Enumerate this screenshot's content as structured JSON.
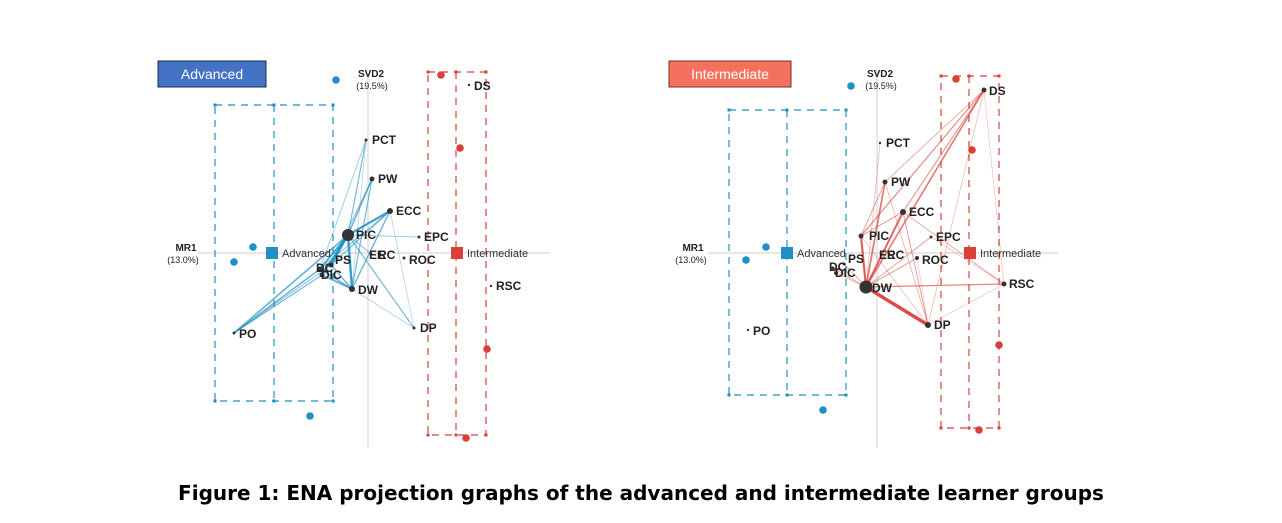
{
  "caption": "Figure 1: ENA projection graphs of the advanced and intermediate learner groups",
  "axes": {
    "x_label": "MR1",
    "x_pct": "(13.0%)",
    "y_label": "SVD2",
    "y_pct": "(19.5%)"
  },
  "colors": {
    "advanced": "#1f8fc4",
    "intermediate": "#d9403a",
    "advanced_box_fill": "#4472c4",
    "advanced_box_text": "#ffffff",
    "intermediate_box_fill": "#f4725d",
    "intermediate_box_text": "#ffffff",
    "node": "#333333",
    "axis": "#cfcfcf"
  },
  "chart_data": [
    {
      "type": "scatter",
      "title": "Advanced",
      "group_mean_label": "Advanced",
      "other_mean_label": "Intermediate",
      "origin": [
        368,
        253
      ],
      "nodes": [
        {
          "code": "PCT",
          "pos": [
            366,
            140
          ],
          "size": 1.5
        },
        {
          "code": "PW",
          "pos": [
            372,
            179
          ],
          "size": 2.5
        },
        {
          "code": "ECC",
          "pos": [
            390,
            211
          ],
          "size": 3
        },
        {
          "code": "PIC",
          "pos": [
            348,
            235
          ],
          "size": 6
        },
        {
          "code": "EPC",
          "pos": [
            419,
            237
          ],
          "size": 1.5
        },
        {
          "code": "EE",
          "pos": [
            371,
            254
          ],
          "size": 1.5
        },
        {
          "code": "RC",
          "pos": [
            380,
            254
          ],
          "size": 1.2
        },
        {
          "code": "ROC",
          "pos": [
            404,
            258
          ],
          "size": 1.5
        },
        {
          "code": "PS",
          "pos": [
            331,
            265
          ],
          "size": 2.5
        },
        {
          "code": "DC",
          "pos": [
            320,
            269
          ],
          "size": 2.5
        },
        {
          "code": "DIC",
          "pos": [
            322,
            275
          ],
          "size": 2.5
        },
        {
          "code": "DW",
          "pos": [
            352,
            289
          ],
          "size": 3
        },
        {
          "code": "RSC",
          "pos": [
            491,
            286
          ],
          "size": 1.2
        },
        {
          "code": "DP",
          "pos": [
            414,
            328
          ],
          "size": 1.5
        },
        {
          "code": "PO",
          "pos": [
            234,
            333
          ],
          "size": 1.5
        },
        {
          "code": "DS",
          "pos": [
            469,
            85
          ],
          "size": 1.2
        }
      ],
      "edges": [
        [
          "PIC",
          "PCT",
          1.2
        ],
        [
          "PIC",
          "PW",
          1.5
        ],
        [
          "PIC",
          "ECC",
          2.2
        ],
        [
          "PIC",
          "PS",
          2.2
        ],
        [
          "PIC",
          "DC",
          2
        ],
        [
          "PIC",
          "DIC",
          2.2
        ],
        [
          "PIC",
          "DW",
          2.4
        ],
        [
          "PIC",
          "PO",
          1.6
        ],
        [
          "PIC",
          "DP",
          1.2
        ],
        [
          "PIC",
          "EE",
          1
        ],
        [
          "PIC",
          "EPC",
          0.8
        ],
        [
          "ECC",
          "DW",
          1.4
        ],
        [
          "ECC",
          "PS",
          1.2
        ],
        [
          "ECC",
          "DC",
          1
        ],
        [
          "PW",
          "DW",
          1.2
        ],
        [
          "PW",
          "PS",
          1
        ],
        [
          "DC",
          "DW",
          1.6
        ],
        [
          "DIC",
          "DW",
          1.6
        ],
        [
          "PS",
          "DW",
          1.4
        ],
        [
          "DC",
          "PO",
          1.5
        ],
        [
          "DIC",
          "PO",
          1.2
        ],
        [
          "PS",
          "PO",
          1
        ],
        [
          "PCT",
          "DC",
          0.8
        ],
        [
          "PCT",
          "DW",
          0.6
        ],
        [
          "DW",
          "DP",
          0.7
        ],
        [
          "ECC",
          "DP",
          0.6
        ]
      ],
      "group_mean_pos": [
        272,
        253
      ],
      "other_mean_pos": [
        457,
        253
      ],
      "group_points": [
        [
          336,
          80
        ],
        [
          253,
          247
        ],
        [
          234,
          262
        ],
        [
          310,
          416
        ]
      ],
      "other_points": [
        [
          441,
          75
        ],
        [
          460,
          148
        ],
        [
          487,
          349
        ],
        [
          466,
          438
        ]
      ],
      "group_box": {
        "x1": 215,
        "x2": 333,
        "x_mid": 274,
        "y1": 105,
        "y2": 401
      },
      "other_box": {
        "x1": 428,
        "x2": 486,
        "x_mid": 456,
        "y1": 72,
        "y2": 435
      }
    },
    {
      "type": "scatter",
      "title": "Intermediate",
      "group_mean_label": "Intermediate",
      "other_mean_label": "Advanced",
      "origin": [
        877,
        253
      ],
      "nodes": [
        {
          "code": "DS",
          "pos": [
            984,
            90
          ],
          "size": 2.5
        },
        {
          "code": "PCT",
          "pos": [
            880,
            143
          ],
          "size": 1.2
        },
        {
          "code": "PW",
          "pos": [
            885,
            182
          ],
          "size": 2.5
        },
        {
          "code": "ECC",
          "pos": [
            903,
            212
          ],
          "size": 3
        },
        {
          "code": "PIC",
          "pos": [
            861,
            236
          ],
          "size": 2.5
        },
        {
          "code": "EPC",
          "pos": [
            931,
            237
          ],
          "size": 1.5
        },
        {
          "code": "EE",
          "pos": [
            881,
            254
          ],
          "size": 1.2
        },
        {
          "code": "RC",
          "pos": [
            889,
            254
          ],
          "size": 1.2
        },
        {
          "code": "ROC",
          "pos": [
            917,
            258
          ],
          "size": 2
        },
        {
          "code": "PS",
          "pos": [
            844,
            264
          ],
          "size": 1.5
        },
        {
          "code": "DC",
          "pos": [
            833,
            268
          ],
          "size": 1.5
        },
        {
          "code": "DIC",
          "pos": [
            836,
            273
          ],
          "size": 2
        },
        {
          "code": "DW",
          "pos": [
            866,
            287
          ],
          "size": 6.5
        },
        {
          "code": "RSC",
          "pos": [
            1004,
            284
          ],
          "size": 2.5
        },
        {
          "code": "DP",
          "pos": [
            928,
            325
          ],
          "size": 3
        },
        {
          "code": "PO",
          "pos": [
            748,
            330
          ],
          "size": 1.2
        }
      ],
      "edges": [
        [
          "DW",
          "DP",
          3.4
        ],
        [
          "DW",
          "DS",
          1.6
        ],
        [
          "DW",
          "ECC",
          2
        ],
        [
          "DW",
          "PW",
          1.7
        ],
        [
          "DW",
          "PIC",
          2.2
        ],
        [
          "DW",
          "RSC",
          1.3
        ],
        [
          "DW",
          "ROC",
          1
        ],
        [
          "DW",
          "EPC",
          0.9
        ],
        [
          "DW",
          "PS",
          0.9
        ],
        [
          "DW",
          "DC",
          0.8
        ],
        [
          "DW",
          "DIC",
          0.8
        ],
        [
          "DW",
          "PCT",
          0.6
        ],
        [
          "PIC",
          "DS",
          1.2
        ],
        [
          "PIC",
          "ECC",
          1
        ],
        [
          "PIC",
          "PW",
          0.9
        ],
        [
          "ECC",
          "DS",
          1.1
        ],
        [
          "ECC",
          "DP",
          0.9
        ],
        [
          "ECC",
          "RSC",
          0.8
        ],
        [
          "PW",
          "DS",
          0.8
        ],
        [
          "PW",
          "DP",
          0.7
        ],
        [
          "DS",
          "DP",
          0.6
        ],
        [
          "DS",
          "RSC",
          0.5
        ],
        [
          "EPC",
          "RSC",
          0.6
        ],
        [
          "DP",
          "RSC",
          0.5
        ],
        [
          "ROC",
          "DP",
          0.5
        ],
        [
          "PIC",
          "DP",
          0.6
        ]
      ],
      "group_mean_pos": [
        970,
        253
      ],
      "other_mean_pos": [
        786,
        253
      ],
      "group_points": [
        [
          956,
          79
        ],
        [
          972,
          150
        ],
        [
          999,
          345
        ],
        [
          979,
          430
        ]
      ],
      "other_points": [
        [
          851,
          86
        ],
        [
          766,
          247
        ],
        [
          746,
          260
        ],
        [
          823,
          410
        ]
      ],
      "group_box": {
        "x1": 941,
        "x2": 999,
        "x_mid": 969,
        "y1": 76,
        "y2": 428
      },
      "other_box": {
        "x1": 729,
        "x2": 846,
        "x_mid": 787,
        "y1": 110,
        "y2": 395
      }
    }
  ]
}
